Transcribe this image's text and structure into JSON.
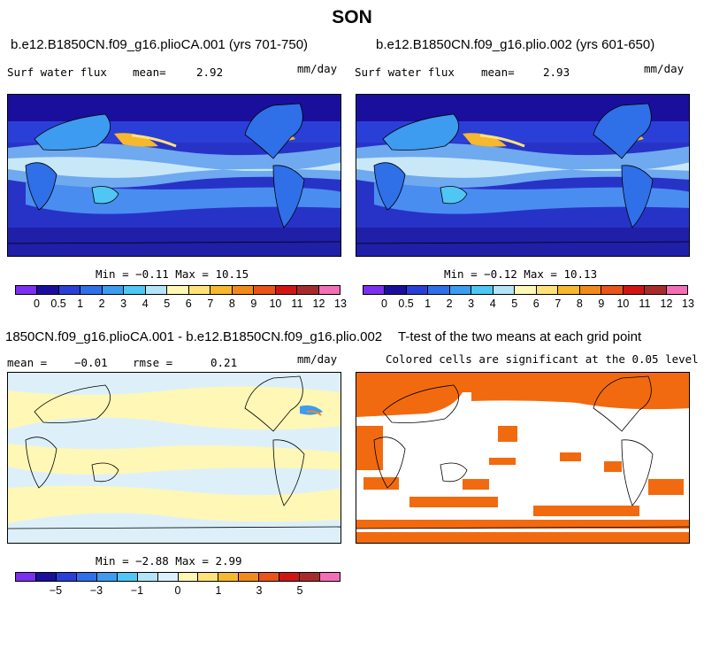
{
  "title": "SON",
  "panels": [
    {
      "heading": "b.e12.B1850CN.f09_g16.plioCA.001 (yrs 701-750)",
      "variable": "Surf water flux",
      "mean_label": "mean=",
      "mean_value": "2.92",
      "units": "mm/day",
      "min_max": "Min = −0.11 Max = 10.15",
      "colorbar_colors": [
        "#7b2ff0",
        "#1a0f9c",
        "#2a3fd8",
        "#2f6fe8",
        "#3d9bf0",
        "#4fc6f3",
        "#b4e4f7",
        "#fff7b5",
        "#ffe27a",
        "#f5b82e",
        "#f08a1a",
        "#e9541a",
        "#d11515",
        "#a82b2b",
        "#f36eb6"
      ],
      "colorbar_labels": [
        "0",
        "0.5",
        "1",
        "2",
        "3",
        "4",
        "5",
        "6",
        "7",
        "8",
        "9",
        "10",
        "11",
        "12",
        "13"
      ]
    },
    {
      "heading": "b.e12.B1850CN.f09_g16.plio.002 (yrs 601-650)",
      "variable": "Surf water flux",
      "mean_label": "mean=",
      "mean_value": "2.93",
      "units": "mm/day",
      "min_max": "Min = −0.12 Max = 10.13",
      "colorbar_colors": [
        "#7b2ff0",
        "#1a0f9c",
        "#2a3fd8",
        "#2f6fe8",
        "#3d9bf0",
        "#4fc6f3",
        "#b4e4f7",
        "#fff7b5",
        "#ffe27a",
        "#f5b82e",
        "#f08a1a",
        "#e9541a",
        "#d11515",
        "#a82b2b",
        "#f36eb6"
      ],
      "colorbar_labels": [
        "0",
        "0.5",
        "1",
        "2",
        "3",
        "4",
        "5",
        "6",
        "7",
        "8",
        "9",
        "10",
        "11",
        "12",
        "13"
      ]
    },
    {
      "heading": "1850CN.f09_g16.plioCA.001 - b.e12.B1850CN.f09_g16.plio.002",
      "mean_label": "mean =",
      "mean_value": "−0.01",
      "rmse_label": "rmse =",
      "rmse_value": "0.21",
      "units": "mm/day",
      "min_max": "Min = −2.88 Max =   2.99",
      "colorbar_colors": [
        "#7b2ff0",
        "#1a0f9c",
        "#2a3fd8",
        "#2f6fe8",
        "#3d9bf0",
        "#4fc6f3",
        "#b4e4f7",
        "#ddf0fa",
        "#fff7b5",
        "#ffe27a",
        "#f5b82e",
        "#f08a1a",
        "#e9541a",
        "#d11515",
        "#a82b2b",
        "#f36eb6"
      ],
      "colorbar_labels": [
        "−5",
        "−3",
        "−1",
        "0",
        "1",
        "3",
        "5"
      ]
    },
    {
      "heading": "T-test of the two means at each grid point",
      "subheading": "Colored cells are significant at the 0.05 level",
      "significant_color": "#f26a0f"
    }
  ]
}
